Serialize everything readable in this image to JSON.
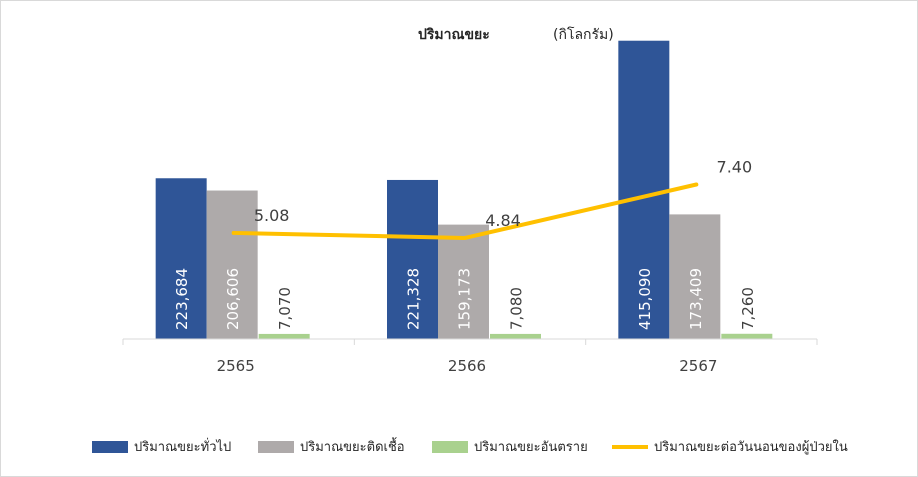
{
  "chart_data": {
    "type": "bar",
    "title": "ปริมาณขยะ",
    "unit": "(กิโลกรัม)",
    "categories": [
      "2565",
      "2566",
      "2567"
    ],
    "series": [
      {
        "name": "ปริมาณขยะทั่วไป",
        "values": [
          223684,
          221328,
          415090
        ],
        "labels": [
          "223,684",
          "221,328",
          "415,090"
        ],
        "color": "#2f5597"
      },
      {
        "name": "ปริมาณขยะติดเชื้อ",
        "values": [
          206606,
          159173,
          173409
        ],
        "labels": [
          "206,606",
          "159,173",
          "173,409"
        ],
        "color": "#aeaaaa"
      },
      {
        "name": "ปริมาณขยะอันตราย",
        "values": [
          7070,
          7080,
          7260
        ],
        "labels": [
          "7,070",
          "7,080",
          "7,260"
        ],
        "color": "#a9d18e"
      }
    ],
    "line_series": {
      "name": "ปริมาณขยะต่อวันนอนของผู้ป่วยใน",
      "values": [
        5.08,
        4.84,
        7.4
      ],
      "labels": [
        "5.08",
        "4.84",
        "7.40"
      ],
      "color": "#ffc000"
    },
    "bar_ylim": [
      0,
      430000
    ],
    "line_ylim": [
      0,
      14.8
    ],
    "legend_position": "bottom",
    "grid": false
  }
}
